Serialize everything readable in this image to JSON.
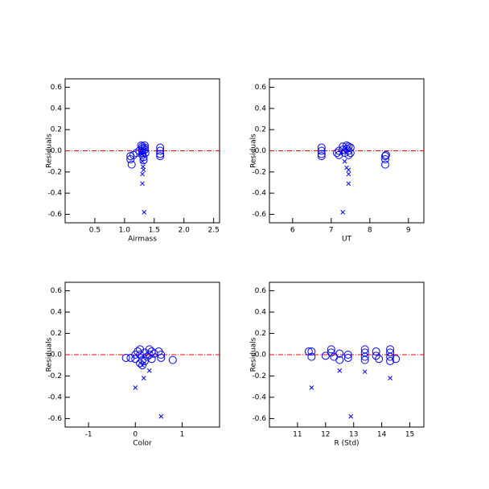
{
  "chart_data": [
    {
      "type": "scatter",
      "xlabel": "Airmass",
      "ylabel": "Residuals",
      "xlim": [
        0,
        2.6
      ],
      "ylim": [
        -0.68,
        0.68
      ],
      "xticks": [
        0.5,
        {
          "value": 1,
          "label": "1.0"
        },
        1.5,
        {
          "value": 2,
          "label": "2.0"
        },
        2.5
      ],
      "yticks": [
        0.6,
        0.4,
        0.2,
        {
          "value": 0,
          "label": "-0.0"
        },
        -0.2,
        -0.4,
        -0.6
      ],
      "hline": 0,
      "hline_color": "#ff0000",
      "series": [
        {
          "marker": "circle",
          "color": "#0000ff",
          "x": [
            1.1,
            1.1,
            1.12,
            1.15,
            1.28,
            1.3,
            1.3,
            1.3,
            1.3,
            1.3,
            1.32,
            1.32,
            1.34,
            1.34,
            1.34,
            1.35,
            1.6,
            1.6,
            1.6,
            1.6,
            1.2,
            1.25
          ],
          "values": [
            -0.05,
            -0.08,
            -0.13,
            -0.04,
            0.05,
            0.04,
            0.02,
            0,
            -0.02,
            -0.04,
            -0.06,
            -0.09,
            0.05,
            0.03,
            0.01,
            -0.02,
            0.03,
            0,
            -0.03,
            -0.05,
            -0.02,
            0
          ]
        },
        {
          "marker": "x",
          "color": "#0000ff",
          "x": [
            1.3,
            1.31,
            1.32,
            1.3,
            1.3,
            1.33,
            1.3,
            1.28
          ],
          "values": [
            -0.1,
            -0.15,
            -0.18,
            -0.22,
            -0.31,
            -0.58,
            -0.03,
            -0.02
          ]
        }
      ]
    },
    {
      "type": "scatter",
      "xlabel": "UT",
      "ylabel": "Residuals",
      "xlim": [
        5.4,
        9.4
      ],
      "ylim": [
        -0.68,
        0.68
      ],
      "xticks": [
        6,
        7,
        8,
        9
      ],
      "yticks": [
        0.6,
        0.4,
        0.2,
        {
          "value": 0,
          "label": "-0.0"
        },
        -0.2,
        -0.4,
        -0.6
      ],
      "hline": 0,
      "hline_color": "#ff0000",
      "series": [
        {
          "marker": "circle",
          "color": "#0000ff",
          "x": [
            6.75,
            6.75,
            6.75,
            6.75,
            7.15,
            7.2,
            7.2,
            7.3,
            7.3,
            7.35,
            7.4,
            7.4,
            7.45,
            7.45,
            7.45,
            7.5,
            7.5,
            8.4,
            8.4,
            8.4,
            8.42
          ],
          "values": [
            0.03,
            0,
            -0.03,
            -0.05,
            -0.02,
            0,
            -0.04,
            0.04,
            0.01,
            -0.02,
            0.05,
            0.02,
            0.04,
            0,
            -0.04,
            0.03,
            -0.02,
            -0.05,
            -0.08,
            -0.13,
            -0.04
          ]
        },
        {
          "marker": "x",
          "color": "#0000ff",
          "x": [
            7.3,
            7.35,
            7.4,
            7.45,
            7.45,
            7.45,
            7.25
          ],
          "values": [
            -0.58,
            -0.1,
            -0.16,
            -0.18,
            -0.22,
            -0.31,
            -0.02
          ]
        }
      ]
    },
    {
      "type": "scatter",
      "xlabel": "Color",
      "ylabel": "Residuals",
      "xlim": [
        -1.5,
        1.8
      ],
      "ylim": [
        -0.68,
        0.68
      ],
      "xticks": [
        -1,
        0,
        1
      ],
      "yticks": [
        0.6,
        0.4,
        0.2,
        {
          "value": 0,
          "label": "-0.0"
        },
        -0.2,
        -0.4,
        -0.6
      ],
      "hline": 0,
      "hline_color": "#ff0000",
      "series": [
        {
          "marker": "circle",
          "color": "#0000ff",
          "x": [
            -0.2,
            -0.1,
            0,
            0,
            0.05,
            0.1,
            0.1,
            0.15,
            0.15,
            0.2,
            0.25,
            0.3,
            0.3,
            0.35,
            0.35,
            0.4,
            0.5,
            0.55,
            0.55,
            0.8,
            0.2,
            0.1
          ],
          "values": [
            -0.03,
            -0.03,
            0,
            -0.04,
            0.03,
            0.05,
            0,
            -0.05,
            -0.1,
            0.02,
            -0.02,
            0.05,
            0,
            0.03,
            -0.04,
            0.01,
            0.03,
            0,
            -0.03,
            -0.05,
            -0.06,
            -0.08
          ]
        },
        {
          "marker": "x",
          "color": "#0000ff",
          "x": [
            0,
            0.18,
            0.3,
            0.55,
            0.15
          ],
          "values": [
            -0.31,
            -0.22,
            -0.15,
            -0.58,
            -0.1
          ]
        }
      ]
    },
    {
      "type": "scatter",
      "xlabel": "R (Std)",
      "ylabel": "Residuals",
      "xlim": [
        10,
        15.5
      ],
      "ylim": [
        -0.68,
        0.68
      ],
      "xticks": [
        11,
        12,
        13,
        14,
        15
      ],
      "yticks": [
        0.6,
        0.4,
        0.2,
        {
          "value": 0,
          "label": "-0.0"
        },
        -0.2,
        -0.4,
        -0.6
      ],
      "hline": 0,
      "hline_color": "#ff0000",
      "series": [
        {
          "marker": "circle",
          "color": "#0000ff",
          "x": [
            11.4,
            11.5,
            11.5,
            12,
            12.2,
            12.2,
            12.3,
            12.5,
            12.5,
            12.8,
            12.8,
            13.4,
            13.4,
            13.4,
            13.4,
            13.8,
            13.8,
            13.9,
            14.3,
            14.3,
            14.3,
            14.3,
            14.5
          ],
          "values": [
            0.03,
            0.03,
            -0.02,
            -0.01,
            0.05,
            0.02,
            -0.02,
            0.01,
            -0.05,
            0,
            -0.03,
            0.05,
            0.02,
            -0.02,
            -0.05,
            0.03,
            -0.01,
            -0.04,
            0.05,
            0.02,
            -0.02,
            -0.06,
            -0.04
          ]
        },
        {
          "marker": "x",
          "color": "#0000ff",
          "x": [
            11.5,
            12.5,
            12.9,
            13.4,
            14.3
          ],
          "values": [
            -0.31,
            -0.15,
            -0.58,
            -0.16,
            -0.22
          ]
        }
      ]
    }
  ]
}
